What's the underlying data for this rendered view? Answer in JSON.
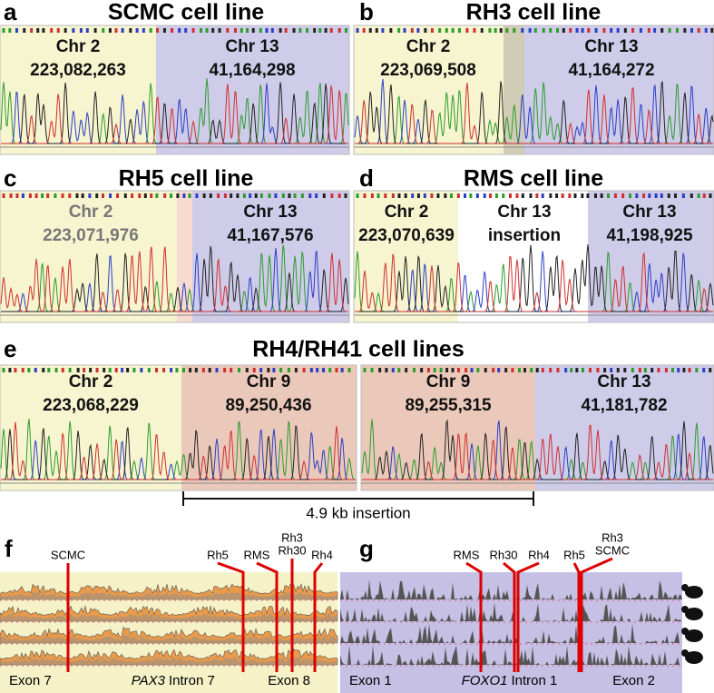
{
  "panels": [
    {
      "label": "a",
      "title": "SCMC cell line",
      "segments": [
        {
          "chr": "Chr 2",
          "position": "223,082,263"
        },
        {
          "chr": "Chr 13",
          "position": "41,164,298"
        }
      ]
    },
    {
      "label": "b",
      "title": "RH3 cell line",
      "segments": [
        {
          "chr": "Chr 2",
          "position": "223,069,508"
        },
        {
          "chr": "Chr 13",
          "position": "41,164,272"
        }
      ]
    },
    {
      "label": "c",
      "title": "RH5 cell line",
      "segments": [
        {
          "chr": "Chr 2",
          "position": "223,071,976"
        },
        {
          "chr": "Chr 13",
          "position": "41,167,576"
        }
      ]
    },
    {
      "label": "d",
      "title": "RMS cell line",
      "segments": [
        {
          "chr": "Chr 2",
          "position": "223,070,639"
        },
        {
          "chr": "Chr 13",
          "position": "insertion"
        },
        {
          "chr": "Chr 13",
          "position": "41,198,925"
        }
      ]
    },
    {
      "label": "e",
      "title": "RH4/RH41 cell lines",
      "segments": [
        {
          "chr": "Chr 2",
          "position": "223,068,229"
        },
        {
          "chr": "Chr 9",
          "position": "89,250,436"
        },
        {
          "chr": "Chr 9",
          "position": "89,255,315"
        },
        {
          "chr": "Chr 13",
          "position": "41,181,782"
        }
      ],
      "insertion": "4.9 kb insertion"
    }
  ],
  "tracks": [
    {
      "label": "f",
      "breakpoints": [
        [
          "SCMC"
        ],
        [
          "Rh5"
        ],
        [
          "RMS"
        ],
        [
          "Rh3",
          "Rh30"
        ],
        [
          "Rh4"
        ]
      ],
      "left": "Exon 7",
      "gene": "PAX3",
      "intron": "Intron 7",
      "right": "Exon 8"
    },
    {
      "label": "g",
      "breakpoints": [
        [
          "RMS"
        ],
        [
          "Rh30"
        ],
        [
          "Rh4"
        ],
        [
          "Rh5"
        ],
        [
          "Rh3",
          "SCMC"
        ]
      ],
      "left": "Exon 1",
      "gene": "FOXO1",
      "intron": "Intron 1",
      "right": "Exon 2"
    }
  ]
}
